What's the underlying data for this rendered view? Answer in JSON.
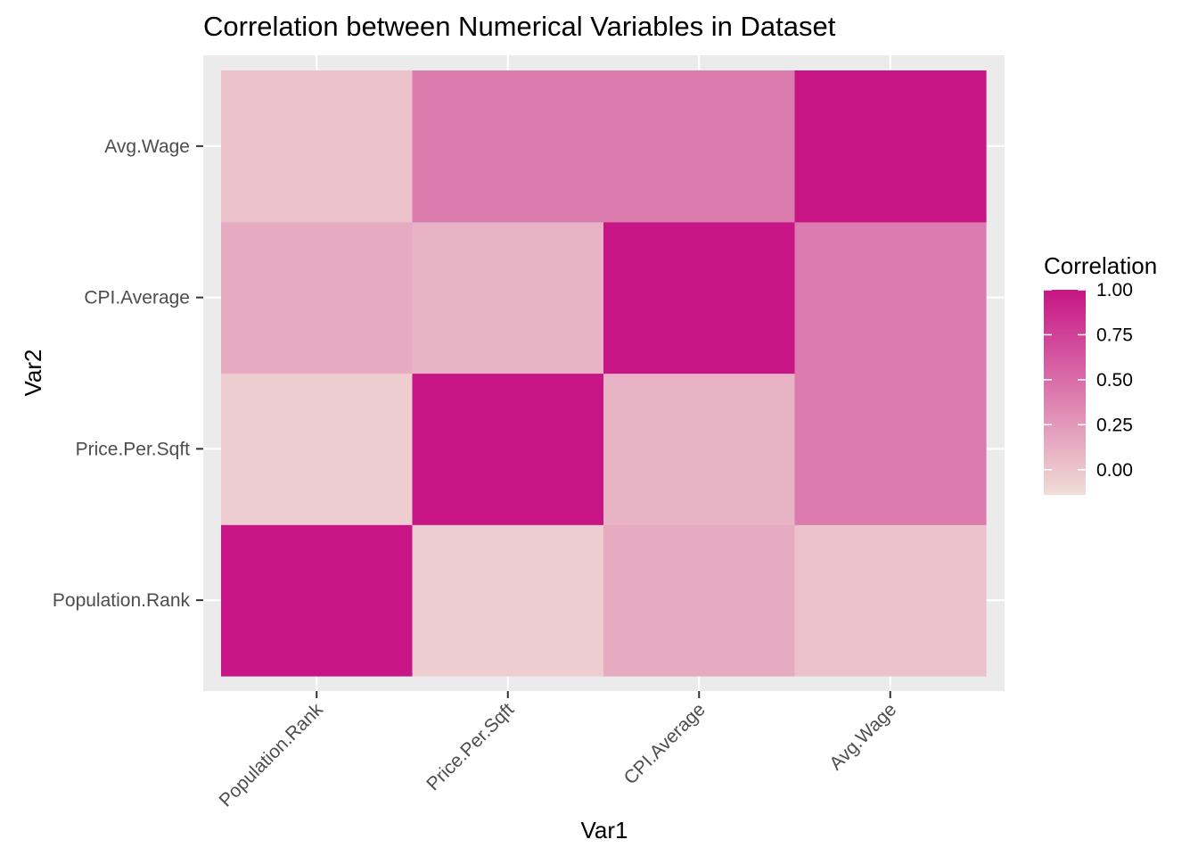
{
  "chart_data": {
    "type": "heatmap",
    "title": "Correlation between Numerical Variables in Dataset",
    "xlabel": "Var1",
    "ylabel": "Var2",
    "x_categories": [
      "Population.Rank",
      "Price.Per.Sqft",
      "CPI.Average",
      "Avg.Wage"
    ],
    "y_categories": [
      "Population.Rank",
      "Price.Per.Sqft",
      "CPI.Average",
      "Avg.Wage"
    ],
    "values": [
      [
        1.0,
        -0.05,
        0.15,
        0.02
      ],
      [
        -0.05,
        1.0,
        0.1,
        0.42
      ],
      [
        0.15,
        0.1,
        1.0,
        0.42
      ],
      [
        0.02,
        0.42,
        0.42,
        1.0
      ]
    ],
    "legend": {
      "title": "Correlation",
      "ticks": [
        "1.00",
        "0.75",
        "0.50",
        "0.25",
        "0.00"
      ],
      "tick_values": [
        1.0,
        0.75,
        0.5,
        0.25,
        0.0
      ],
      "range": [
        -0.14,
        1.0
      ],
      "position": "right"
    },
    "color_low": "#f1ddd6",
    "color_high": "#c71585",
    "panel_background": "#ebebeb",
    "grid": true
  }
}
